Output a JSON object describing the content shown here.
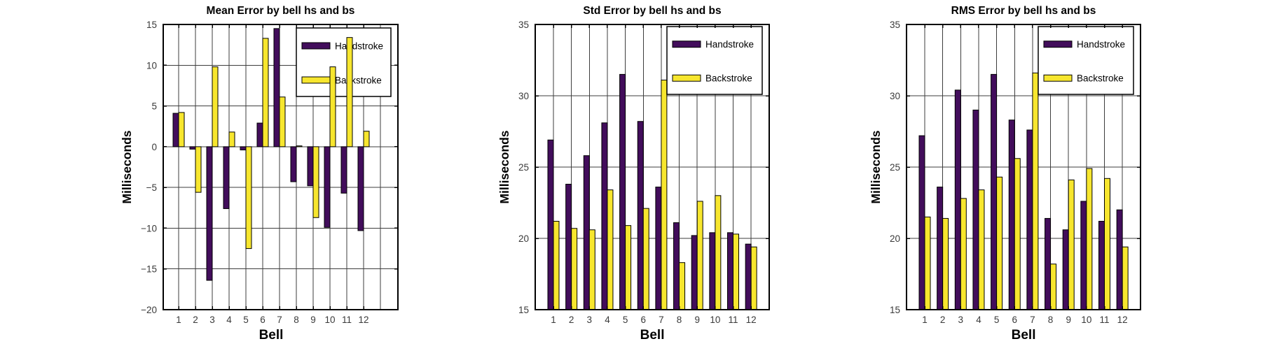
{
  "page": {
    "background": "#ffffff"
  },
  "colors": {
    "handstroke": "#420D5B",
    "backstroke": "#F7E62E",
    "bar_edge": "#000000",
    "grid": "#3D3D3D",
    "axis": "#000000",
    "tick_label": "#3A3A3A",
    "text": "#000000",
    "legend_bg": "#FFFFFF",
    "legend_border": "#000000"
  },
  "legend": {
    "position": "top-right",
    "entries": [
      {
        "label": "Handstroke",
        "color_key": "handstroke"
      },
      {
        "label": "Backstroke",
        "color_key": "backstroke"
      }
    ]
  },
  "chart_data": [
    {
      "type": "bar",
      "title": "Mean Error by bell hs and bs",
      "xlabel": "Bell",
      "ylabel": "Milliseconds",
      "categories": [
        "1",
        "2",
        "3",
        "4",
        "5",
        "6",
        "7",
        "8",
        "9",
        "10",
        "11",
        "12"
      ],
      "series": [
        {
          "name": "Handstroke",
          "values": [
            4.1,
            -0.3,
            -16.4,
            -7.6,
            -0.4,
            2.9,
            14.5,
            -4.3,
            -4.8,
            -9.9,
            -5.7,
            -10.3
          ]
        },
        {
          "name": "Backstroke",
          "values": [
            4.2,
            -5.6,
            9.8,
            1.8,
            -12.5,
            13.3,
            6.1,
            0.1,
            -8.7,
            9.8,
            13.4,
            1.9
          ]
        }
      ],
      "ylim": [
        -20,
        15
      ],
      "yticks": [
        -20,
        -15,
        -10,
        -5,
        0,
        5,
        10,
        15
      ],
      "ytick_labels": [
        "−20",
        "−15",
        "−10",
        "−5",
        "0",
        "5",
        "10",
        "15"
      ],
      "grid": true,
      "legend_position": "top-right"
    },
    {
      "type": "bar",
      "title": "Std Error by bell hs and bs",
      "xlabel": "Bell",
      "ylabel": "Milliseconds",
      "categories": [
        "1",
        "2",
        "3",
        "4",
        "5",
        "6",
        "7",
        "8",
        "9",
        "10",
        "11",
        "12"
      ],
      "series": [
        {
          "name": "Handstroke",
          "values": [
            26.9,
            23.8,
            25.8,
            28.1,
            31.5,
            28.2,
            23.6,
            21.1,
            20.2,
            20.4,
            20.4,
            19.6
          ]
        },
        {
          "name": "Backstroke",
          "values": [
            21.2,
            20.7,
            20.6,
            23.4,
            20.9,
            22.1,
            31.1,
            18.3,
            22.6,
            23.0,
            20.3,
            19.4
          ]
        }
      ],
      "ylim": [
        15,
        35
      ],
      "yticks": [
        15,
        20,
        25,
        30,
        35
      ],
      "ytick_labels": [
        "15",
        "20",
        "25",
        "30",
        "35"
      ],
      "grid": true,
      "legend_position": "top-right"
    },
    {
      "type": "bar",
      "title": "RMS Error by bell hs and bs",
      "xlabel": "Bell",
      "ylabel": "Milliseconds",
      "categories": [
        "1",
        "2",
        "3",
        "4",
        "5",
        "6",
        "7",
        "8",
        "9",
        "10",
        "11",
        "12"
      ],
      "series": [
        {
          "name": "Handstroke",
          "values": [
            27.2,
            23.6,
            30.4,
            29.0,
            31.5,
            28.3,
            27.6,
            21.4,
            20.6,
            22.6,
            21.2,
            22.0
          ]
        },
        {
          "name": "Backstroke",
          "values": [
            21.5,
            21.4,
            22.8,
            23.4,
            24.3,
            25.6,
            31.6,
            18.2,
            24.1,
            24.9,
            24.2,
            19.4
          ]
        }
      ],
      "ylim": [
        15,
        35
      ],
      "yticks": [
        15,
        20,
        25,
        30,
        35
      ],
      "ytick_labels": [
        "15",
        "20",
        "25",
        "30",
        "35"
      ],
      "grid": true,
      "legend_position": "top-right"
    }
  ]
}
